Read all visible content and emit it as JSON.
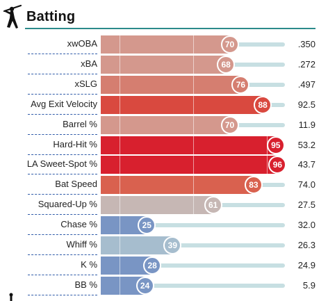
{
  "header": {
    "title": "Batting",
    "icon": "batter-silhouette-icon"
  },
  "chart_data": {
    "type": "bar",
    "orientation": "horizontal",
    "title": "Batting",
    "xlim": [
      0,
      100
    ],
    "categories": [
      "xwOBA",
      "xBA",
      "xSLG",
      "Avg Exit Velocity",
      "Barrel %",
      "Hard-Hit %",
      "LA Sweet-Spot %",
      "Bat Speed",
      "Squared-Up %",
      "Chase %",
      "Whiff %",
      "K %",
      "BB %"
    ],
    "percentiles": [
      70,
      68,
      76,
      88,
      70,
      95,
      96,
      83,
      61,
      25,
      39,
      28,
      24
    ],
    "stat_values": [
      ".350",
      ".272",
      ".497",
      "92.5",
      "11.9",
      "53.2",
      "43.7",
      "74.0",
      "27.5",
      "32.0",
      "26.3",
      "24.9",
      "5.9"
    ],
    "colors": [
      "#d4988d",
      "#d4988d",
      "#d57e70",
      "#d9493f",
      "#d4988d",
      "#d8202e",
      "#d8202e",
      "#d9614f",
      "#c6b7b4",
      "#7995c4",
      "#a6bdce",
      "#7995c4",
      "#7995c4"
    ]
  }
}
